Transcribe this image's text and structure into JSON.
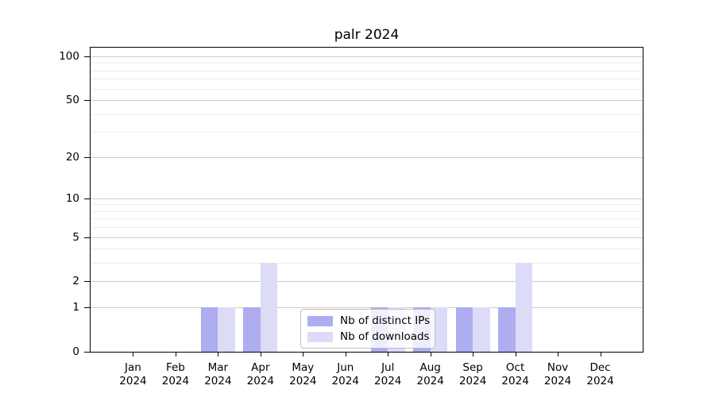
{
  "chart_data": {
    "type": "bar",
    "title": "palr 2024",
    "categories": [
      "Jan",
      "Feb",
      "Mar",
      "Apr",
      "May",
      "Jun",
      "Jul",
      "Aug",
      "Sep",
      "Oct",
      "Nov",
      "Dec"
    ],
    "year_label": "2024",
    "series": [
      {
        "name": "Nb of distinct IPs",
        "color": "#adadf0",
        "values": [
          0,
          0,
          1,
          1,
          0,
          0,
          1,
          1,
          1,
          1,
          0,
          0
        ]
      },
      {
        "name": "Nb of downloads",
        "color": "#dcdcf7",
        "values": [
          0,
          0,
          1,
          3,
          0,
          0,
          1,
          1,
          1,
          3,
          0,
          0
        ]
      }
    ],
    "y_axis": {
      "scale": "log1p",
      "major_ticks": [
        0,
        1,
        2,
        5,
        10,
        20,
        50,
        100
      ],
      "minor_ticks": [
        3,
        4,
        6,
        7,
        8,
        9,
        30,
        40,
        60,
        70,
        80,
        90
      ],
      "ylim": [
        0,
        116
      ]
    },
    "xlabel": "",
    "ylabel": "",
    "grid": "horizontal",
    "legend_position": "lower-center"
  }
}
